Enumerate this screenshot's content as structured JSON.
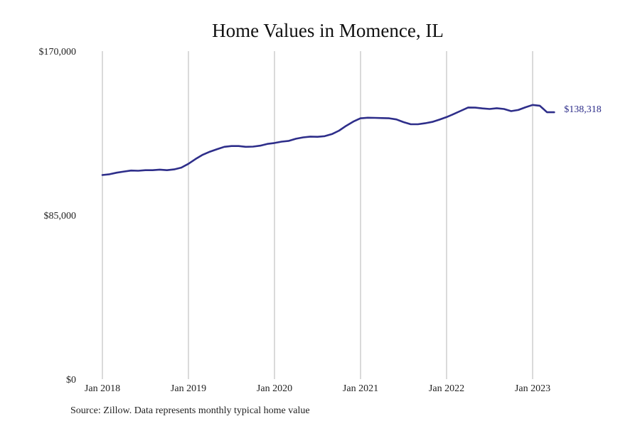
{
  "source_note": "Source: Zillow. Data represents monthly typical home value",
  "colors": {
    "line": "#2e2e8a",
    "grid": "#b4b4b4"
  },
  "chart_data": {
    "type": "line",
    "title": "Home Values in Momence, IL",
    "xlabel": "",
    "ylabel": "",
    "ylim": [
      0,
      170000
    ],
    "yticks": [
      0,
      85000,
      170000
    ],
    "ytick_labels": [
      "$0",
      "$85,000",
      "$170,000"
    ],
    "xlim": [
      "2018-01",
      "2023-12"
    ],
    "xticks": [
      "2018-01",
      "2019-01",
      "2020-01",
      "2021-01",
      "2022-01",
      "2023-01"
    ],
    "xtick_labels": [
      "Jan 2018",
      "Jan 2019",
      "Jan 2020",
      "Jan 2021",
      "Jan 2022",
      "Jan 2023"
    ],
    "grid": {
      "vertical": true,
      "horizontal": false
    },
    "end_label": "$138,318",
    "series": [
      {
        "x": [
          "2018-01",
          "2018-02",
          "2018-03",
          "2018-04",
          "2018-05",
          "2018-06",
          "2018-07",
          "2018-08",
          "2018-09",
          "2018-10",
          "2018-11",
          "2018-12",
          "2019-01",
          "2019-02",
          "2019-03",
          "2019-04",
          "2019-05",
          "2019-06",
          "2019-07",
          "2019-08",
          "2019-09",
          "2019-10",
          "2019-11",
          "2019-12",
          "2020-01",
          "2020-02",
          "2020-03",
          "2020-04",
          "2020-05",
          "2020-06",
          "2020-07",
          "2020-08",
          "2020-09",
          "2020-10",
          "2020-11",
          "2020-12",
          "2021-01",
          "2021-02",
          "2021-03",
          "2021-04",
          "2021-05",
          "2021-06",
          "2021-07",
          "2021-08",
          "2021-09",
          "2021-10",
          "2021-11",
          "2021-12",
          "2022-01",
          "2022-02",
          "2022-03",
          "2022-04",
          "2022-05",
          "2022-06",
          "2022-07",
          "2022-08",
          "2022-09",
          "2022-10",
          "2022-11",
          "2022-12",
          "2023-01",
          "2023-02",
          "2023-03",
          "2023-04"
        ],
        "values": [
          105800,
          106200,
          107000,
          107600,
          108100,
          108000,
          108300,
          108300,
          108600,
          108300,
          108700,
          109600,
          111600,
          114100,
          116300,
          117900,
          119200,
          120400,
          120800,
          120800,
          120400,
          120500,
          121000,
          121900,
          122400,
          123100,
          123500,
          124600,
          125300,
          125700,
          125600,
          125900,
          127000,
          128800,
          131300,
          133500,
          135200,
          135500,
          135400,
          135300,
          135200,
          134600,
          133200,
          132100,
          132100,
          132600,
          133300,
          134500,
          135800,
          137400,
          139100,
          140800,
          140700,
          140300,
          140000,
          140400,
          140000,
          138900,
          139500,
          140900,
          142100,
          141700,
          138318,
          138318
        ]
      }
    ]
  }
}
